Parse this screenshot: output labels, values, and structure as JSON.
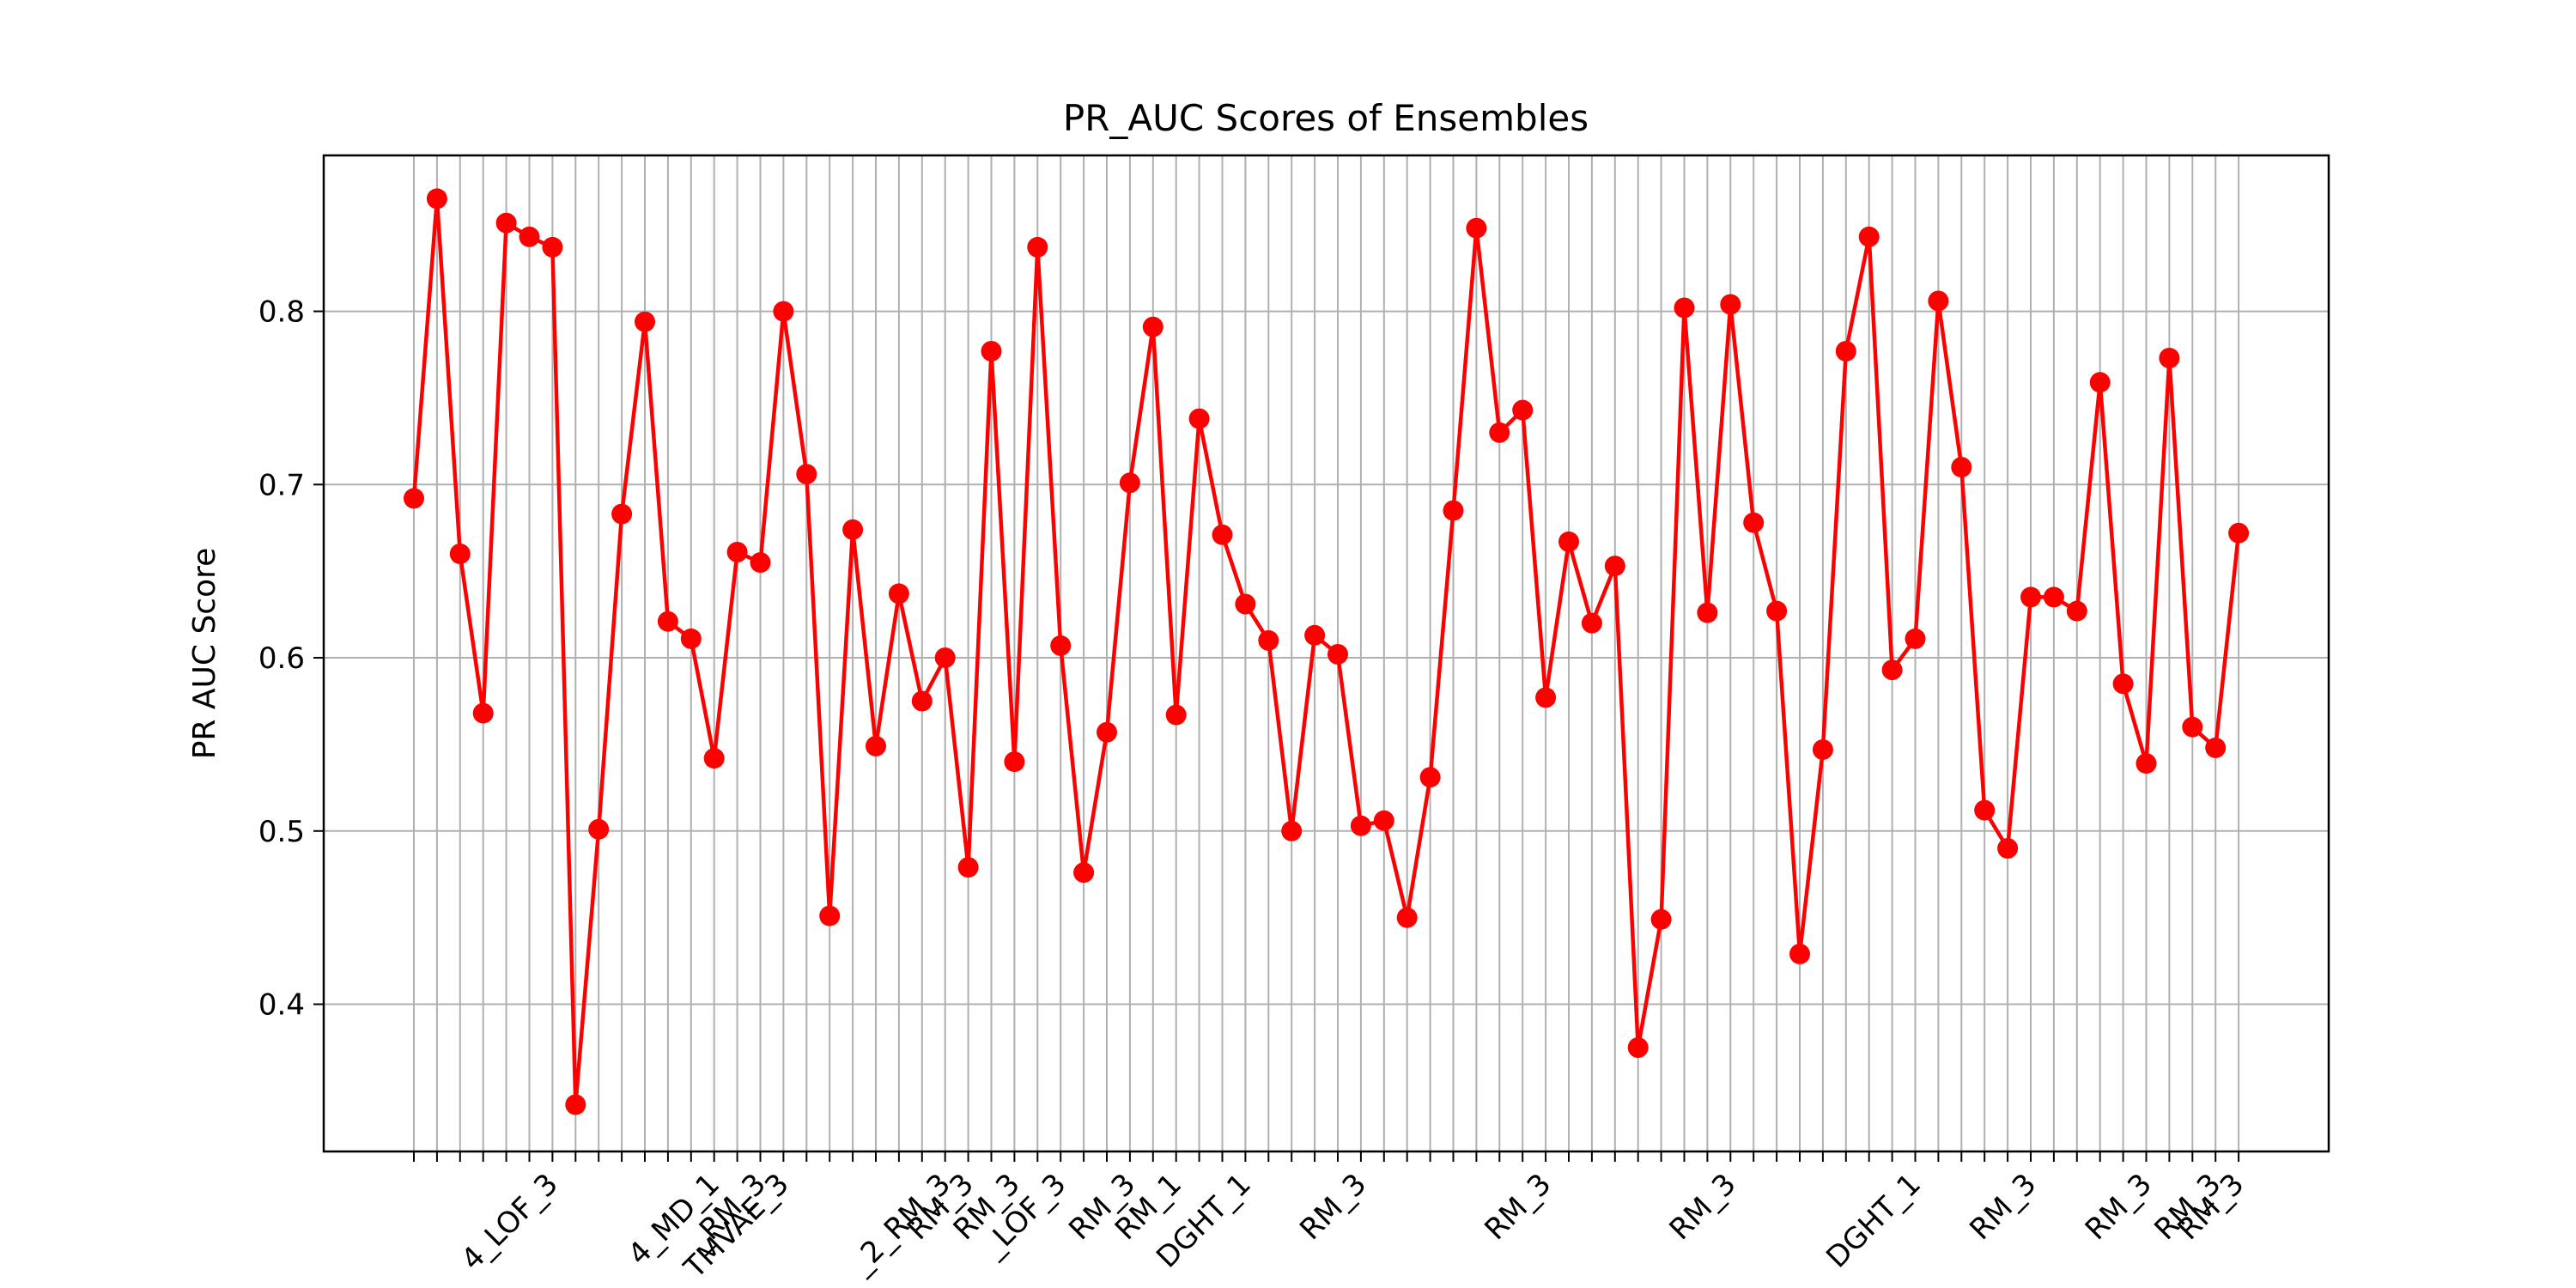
{
  "chart_data": {
    "type": "line",
    "title": "PR_AUC Scores of Ensembles",
    "xlabel": "",
    "ylabel": "PR AUC Score",
    "ylim": [
      0.315,
      0.89
    ],
    "yticks": [
      0.4,
      0.5,
      0.6,
      0.7,
      0.8
    ],
    "ytick_labels": [
      "0.4",
      "0.5",
      "0.6",
      "0.7",
      "0.8"
    ],
    "grid": true,
    "line_color": "#ff0000",
    "grid_color": "#b0b0b0",
    "x_tick_labels_visible": [
      "4_LOF_3",
      "4_MD_1",
      "_RM_3",
      "TMVAE_3",
      "_2_RM_3",
      "RM_3",
      "RM_3",
      "_LOF_3",
      "RM_3",
      "RM_1",
      "DGHT_1",
      "RM_3",
      "RM_3",
      "RM_3",
      "DGHT_1",
      "RM_3",
      "RM_3",
      "RM_3",
      "RM_3"
    ],
    "series": [
      {
        "values": [
          0.692,
          0.865,
          0.66,
          0.568,
          0.851,
          0.843,
          0.837,
          0.342,
          0.501,
          0.683,
          0.794,
          0.621,
          0.611,
          0.542,
          0.661,
          0.655,
          0.8,
          0.706,
          0.451,
          0.674,
          0.549,
          0.637,
          0.575,
          0.6,
          0.479,
          0.777,
          0.54,
          0.837,
          0.607,
          0.476,
          0.557,
          0.701,
          0.791,
          0.567,
          0.738,
          0.671,
          0.631,
          0.61,
          0.5,
          0.613,
          0.602,
          0.503,
          0.506,
          0.45,
          0.531,
          0.685,
          0.848,
          0.73,
          0.743,
          0.577,
          0.667,
          0.62,
          0.653,
          0.375,
          0.449,
          0.802,
          0.626,
          0.804,
          0.678,
          0.627,
          0.429,
          0.547,
          0.777,
          0.843,
          0.593,
          0.611,
          0.806,
          0.71,
          0.512,
          0.49,
          0.635,
          0.635,
          0.627,
          0.759,
          0.585,
          0.539,
          0.773,
          0.56,
          0.548,
          0.672
        ]
      }
    ]
  }
}
